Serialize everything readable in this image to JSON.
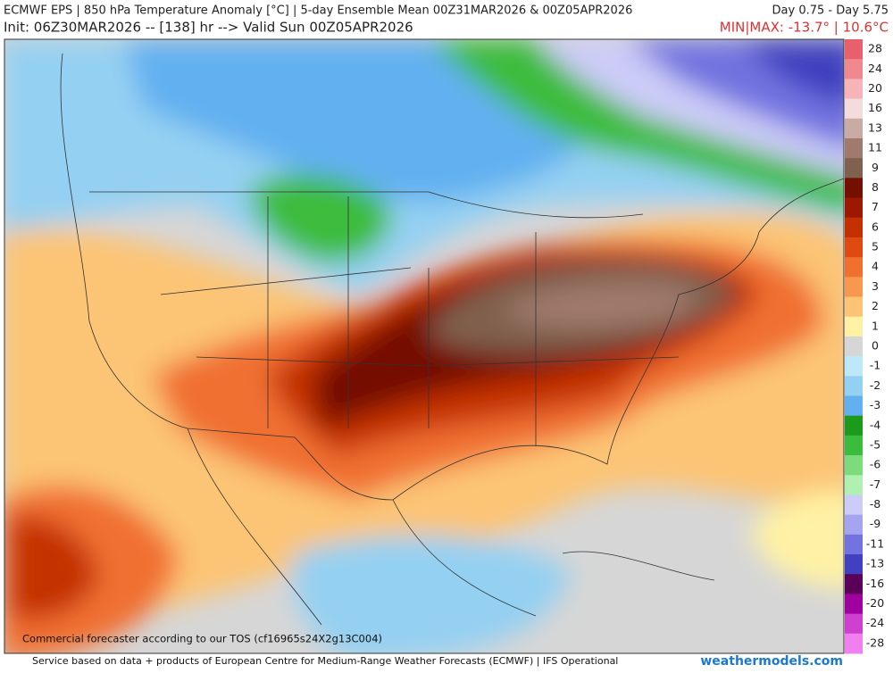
{
  "header": {
    "title": "ECMWF EPS | 850 hPa Temperature Anomaly [°C] | 5-day Ensemble Mean 00Z31MAR2026 & 00Z05APR2026",
    "days": "Day 0.75 - Day 5.75",
    "init": "Init: 06Z30MAR2026 -- [138] hr --> Valid Sun 00Z05APR2026",
    "minmax": "MIN|MAX: -13.7° | 10.6°C"
  },
  "watermark": "Commercial forecaster according to our TOS (cf16965s24X2g13C004)",
  "footer": {
    "credit": "Service based on data + products of European Centre for Medium-Range Weather Forecasts (ECMWF) | IFS Operational",
    "site": "weathermodels.com"
  },
  "colorbar": {
    "levels": [
      28,
      24,
      20,
      16,
      13,
      11,
      9,
      8,
      7,
      6,
      5,
      4,
      3,
      2,
      1,
      0,
      -1,
      -2,
      -3,
      -4,
      -5,
      -6,
      -7,
      -8,
      -9,
      -11,
      -13,
      -16,
      -20,
      -24,
      -28
    ],
    "colors": [
      "#e8606b",
      "#f08890",
      "#f6b4b8",
      "#f2dcdc",
      "#c8aca4",
      "#a07a6c",
      "#80604e",
      "#741000",
      "#9c1800",
      "#c43000",
      "#e04a10",
      "#f07030",
      "#f89850",
      "#fcc474",
      "#fff2a4",
      "#d6d6d6",
      "#bce8f8",
      "#94d0f2",
      "#62b0f0",
      "#1c9a1c",
      "#3cbc3c",
      "#7cdc7c",
      "#b0f0b0",
      "#ccccf8",
      "#a4a4f0",
      "#7272e0",
      "#4040c0",
      "#5a005a",
      "#a000a0",
      "#d040d0",
      "#f080f0"
    ]
  }
}
